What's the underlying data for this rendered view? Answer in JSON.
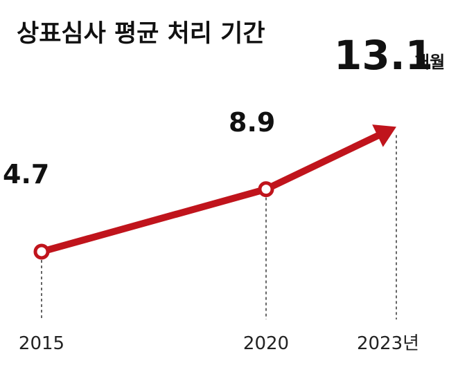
{
  "chart_data": {
    "type": "line",
    "title": "상표심사 평균 처리 기간",
    "x": [
      "2015",
      "2020",
      "2023년"
    ],
    "values": [
      4.7,
      8.9,
      13.1
    ],
    "value_labels": [
      "4.7",
      "8.9",
      "13.1"
    ],
    "last_value_unit": "개월",
    "xlabel": "",
    "ylabel": "",
    "grid": false,
    "legend": "none",
    "line_color": "#c0141c",
    "marker_style": "hollow circle",
    "last_point_marker": "arrow"
  }
}
